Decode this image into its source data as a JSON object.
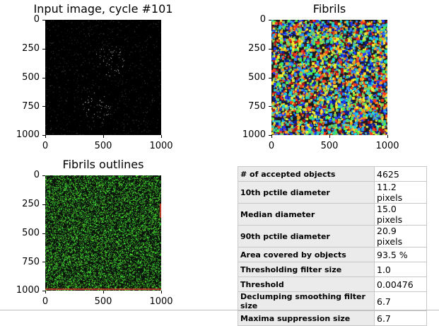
{
  "figure": {
    "panels": [
      {
        "id": "input",
        "title": "Input image, cycle #101",
        "y_ticks": [
          "0",
          "250",
          "500",
          "750",
          "1000"
        ],
        "x_ticks": [
          "0",
          "500",
          "1000"
        ]
      },
      {
        "id": "fibrils",
        "title": "Fibrils",
        "y_ticks": [
          "0",
          "250",
          "500",
          "750",
          "1000"
        ],
        "x_ticks": [
          "0",
          "500",
          "1000"
        ]
      },
      {
        "id": "outlines",
        "title": "Fibrils outlines",
        "y_ticks": [
          "0",
          "250",
          "500",
          "750",
          "1000"
        ],
        "x_ticks": [
          "0",
          "500",
          "1000"
        ]
      }
    ],
    "axis_range": [
      0,
      1000
    ]
  },
  "stats": {
    "rows": [
      {
        "key": "# of accepted objects",
        "value": "4625"
      },
      {
        "key": "10th pctile diameter",
        "value": "11.2 pixels"
      },
      {
        "key": "Median diameter",
        "value": "15.0 pixels"
      },
      {
        "key": "90th pctile diameter",
        "value": "20.9 pixels"
      },
      {
        "key": "Area covered by objects",
        "value": "93.5 %"
      },
      {
        "key": "Thresholding filter size",
        "value": "1.0"
      },
      {
        "key": "Threshold",
        "value": "0.00476"
      },
      {
        "key": "Declumping smoothing filter size",
        "value": "6.7"
      },
      {
        "key": "Maxima suppression size",
        "value": "6.7"
      }
    ]
  }
}
